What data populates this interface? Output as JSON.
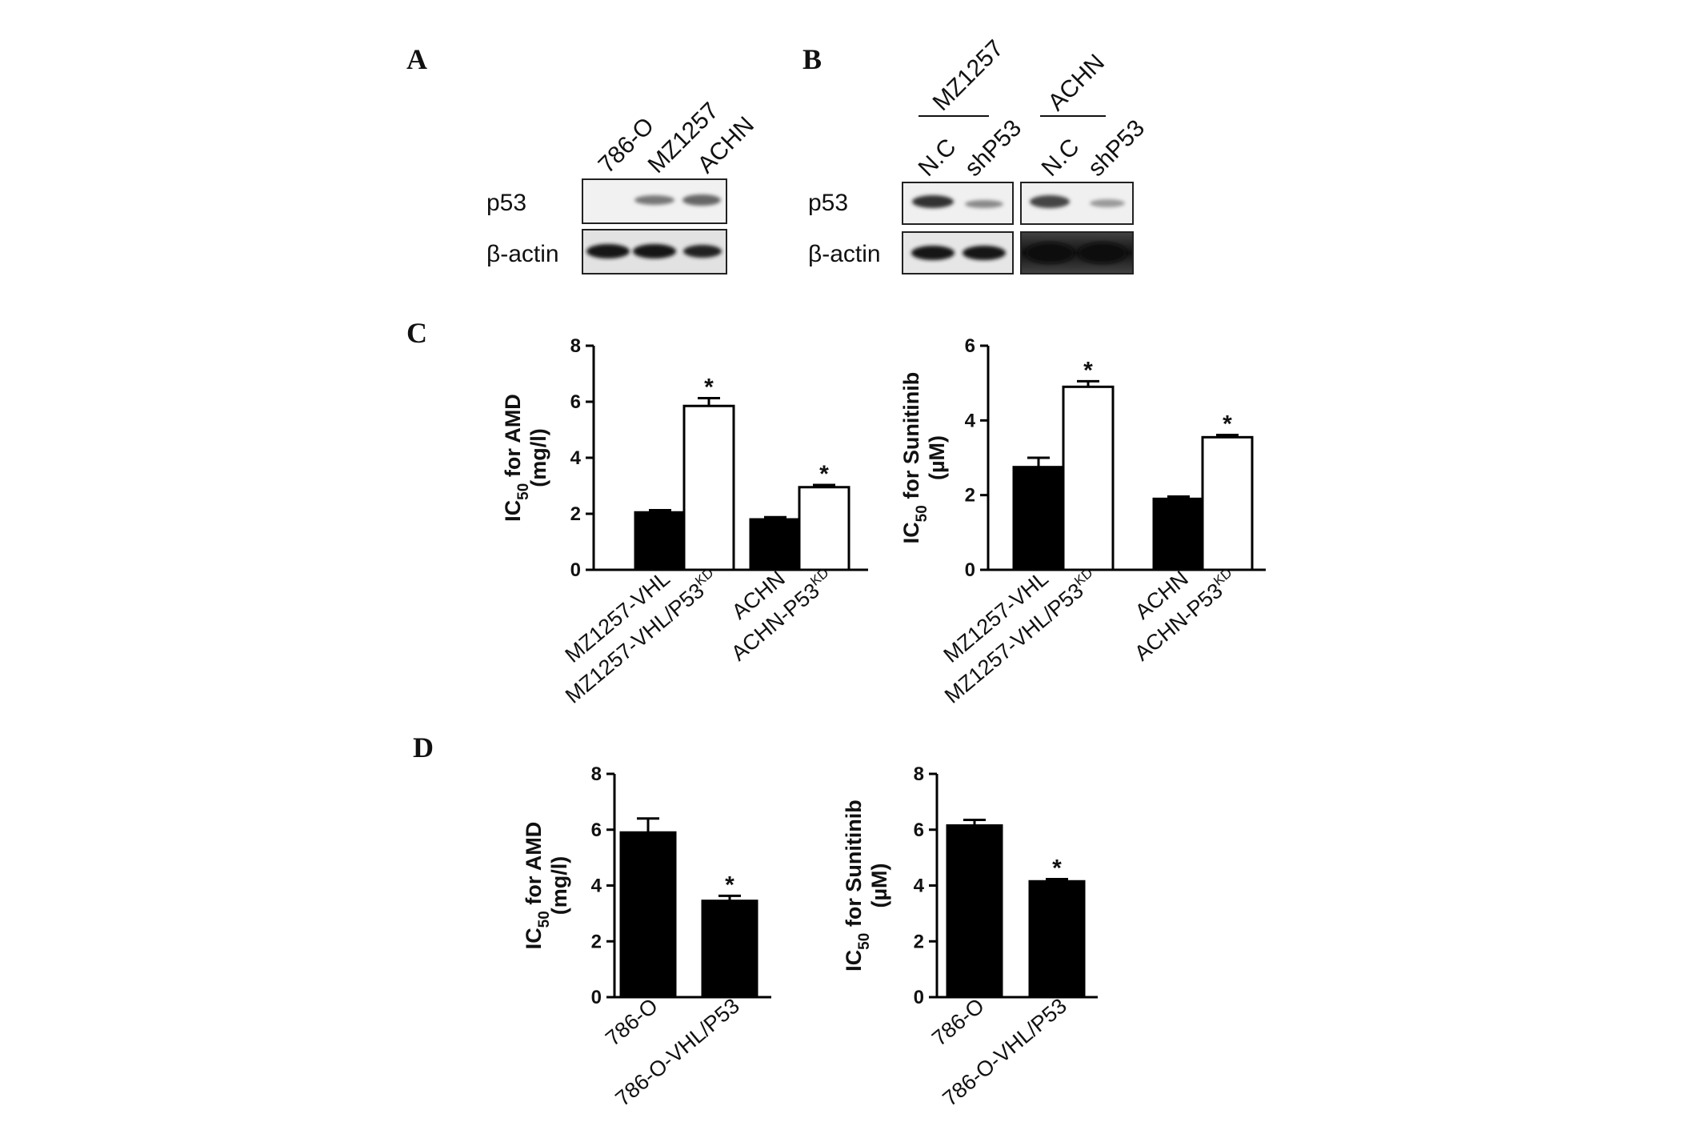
{
  "panels": {
    "A": {
      "label": "A",
      "lanes": [
        "786-O",
        "MZ1257",
        "ACHN"
      ],
      "rows": [
        "p53",
        "β-actin"
      ]
    },
    "B": {
      "label": "B",
      "groups": [
        {
          "name": "MZ1257",
          "lanes": [
            "N.C",
            "shP53"
          ]
        },
        {
          "name": "ACHN",
          "lanes": [
            "N.C",
            "shP53"
          ]
        }
      ],
      "rows": [
        "p53",
        "β-actin"
      ]
    },
    "C": {
      "label": "C"
    },
    "D": {
      "label": "D"
    }
  },
  "chart_data": [
    {
      "panel": "C",
      "type": "bar",
      "ylabel_main": "IC",
      "ylabel_sub": "50",
      "ylabel_rest": " for AMD",
      "yunit": "(mg/l)",
      "ylim": [
        0,
        8
      ],
      "yticks": [
        0,
        2,
        4,
        6,
        8
      ],
      "categories": [
        "MZ1257-VHL",
        "MZ1257-VHL/P53",
        "ACHN",
        "ACHN-P53"
      ],
      "category_superscripts": [
        "",
        "KD",
        "",
        "KD"
      ],
      "values": [
        2.05,
        5.85,
        1.8,
        2.95
      ],
      "errors": [
        0.08,
        0.28,
        0.08,
        0.08
      ],
      "fills": [
        "#000000",
        "#ffffff",
        "#000000",
        "#ffffff"
      ],
      "significance": [
        "",
        "*",
        "",
        "*"
      ]
    },
    {
      "panel": "C",
      "type": "bar",
      "ylabel_main": "IC",
      "ylabel_sub": "50",
      "ylabel_rest": " for Sunitinib",
      "yunit": "(µM)",
      "ylim": [
        0,
        6
      ],
      "yticks": [
        0,
        2,
        4,
        6
      ],
      "categories": [
        "MZ1257-VHL",
        "MZ1257-VHL/P53",
        "ACHN",
        "ACHN-P53"
      ],
      "category_superscripts": [
        "",
        "KD",
        "",
        "KD"
      ],
      "values": [
        2.75,
        4.9,
        1.9,
        3.55
      ],
      "errors": [
        0.25,
        0.15,
        0.06,
        0.06
      ],
      "fills": [
        "#000000",
        "#ffffff",
        "#000000",
        "#ffffff"
      ],
      "significance": [
        "",
        "*",
        "",
        "*"
      ]
    },
    {
      "panel": "D",
      "type": "bar",
      "ylabel_main": "IC",
      "ylabel_sub": "50",
      "ylabel_rest": " for AMD",
      "yunit": "(mg/l)",
      "ylim": [
        0,
        8
      ],
      "yticks": [
        0,
        2,
        4,
        6,
        8
      ],
      "categories": [
        "786-O",
        "786-O-VHL/P53"
      ],
      "category_superscripts": [
        "",
        ""
      ],
      "values": [
        5.9,
        3.45
      ],
      "errors": [
        0.5,
        0.18
      ],
      "fills": [
        "#000000",
        "#000000"
      ],
      "significance": [
        "",
        "*"
      ]
    },
    {
      "panel": "D",
      "type": "bar",
      "ylabel_main": "IC",
      "ylabel_sub": "50",
      "ylabel_rest": " for Sunitinib",
      "yunit": "(µM)",
      "ylim": [
        0,
        8
      ],
      "yticks": [
        0,
        2,
        4,
        6,
        8
      ],
      "categories": [
        "786-O",
        "786-O-VHL/P53"
      ],
      "category_superscripts": [
        "",
        ""
      ],
      "values": [
        6.15,
        4.15
      ],
      "errors": [
        0.2,
        0.08
      ],
      "fills": [
        "#000000",
        "#000000"
      ],
      "significance": [
        "",
        "*"
      ]
    }
  ]
}
